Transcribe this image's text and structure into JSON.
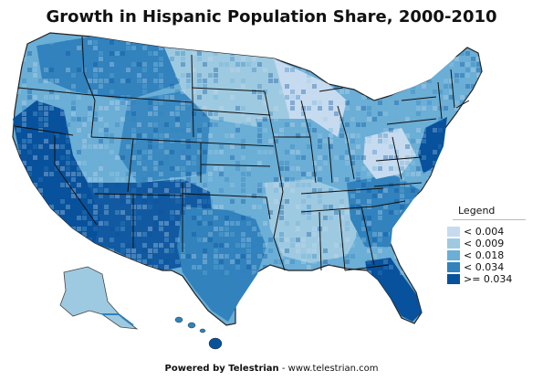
{
  "title": "Growth in Hispanic Population Share, 2000-2010",
  "legend": {
    "title": "Legend",
    "items": [
      {
        "label": "< 0.004",
        "color": "#c6dbef"
      },
      {
        "label": "< 0.009",
        "color": "#9ecae1"
      },
      {
        "label": "< 0.018",
        "color": "#6baed6"
      },
      {
        "label": "< 0.034",
        "color": "#3182bd"
      },
      {
        "label": ">= 0.034",
        "color": "#08519c"
      }
    ]
  },
  "footer": {
    "label": "Powered by Telestrian",
    "separator": " - ",
    "url": "www.telestrian.com"
  },
  "colors": {
    "background": "#ffffff",
    "state_border": "#111111",
    "county_border": "#ffffff"
  }
}
